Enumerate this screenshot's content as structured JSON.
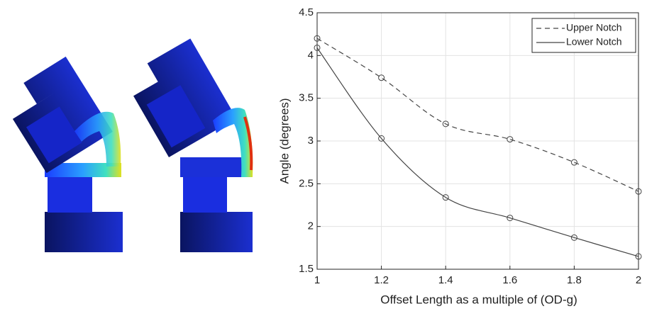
{
  "chart_data": {
    "type": "line",
    "x_label": "Offset Length as a multiple of (OD-g)",
    "y_label": "Angle (degrees)",
    "x": [
      1,
      1.2,
      1.4,
      1.6,
      1.8,
      2
    ],
    "series": [
      {
        "name": "Upper Notch",
        "color": "#444444",
        "line_style": "dashed",
        "values": [
          4.2,
          3.74,
          3.2,
          3.02,
          2.75,
          2.41
        ]
      },
      {
        "name": "Lower Notch",
        "color": "#444444",
        "line_style": "solid",
        "values": [
          4.09,
          3.03,
          2.34,
          2.1,
          1.87,
          1.65
        ]
      }
    ],
    "xlim": [
      1,
      2
    ],
    "xticks": [
      1,
      1.2,
      1.4,
      1.6,
      1.8,
      2
    ],
    "ylim": [
      1.5,
      4.5
    ],
    "yticks": [
      1.5,
      2,
      2.5,
      3,
      3.5,
      4,
      4.5
    ],
    "grid": true,
    "legend": "top-right"
  }
}
